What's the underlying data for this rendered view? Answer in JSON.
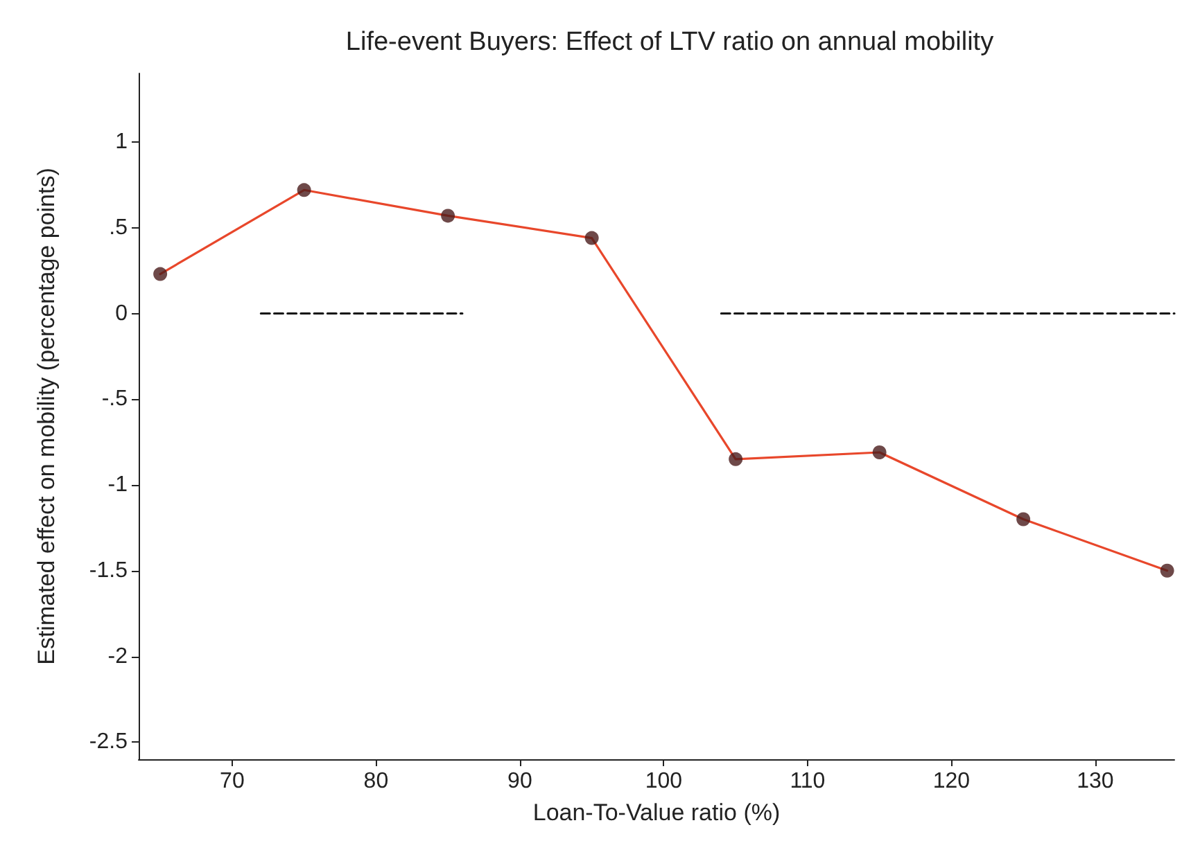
{
  "chart_data": {
    "type": "line",
    "title": "Life-event Buyers: Effect of LTV ratio on annual mobility",
    "xlabel": "Loan-To-Value ratio (%)",
    "ylabel": "Estimated effect on mobility (percentage points)",
    "x": [
      65,
      75,
      85,
      95,
      105,
      115,
      125,
      135
    ],
    "series": [
      {
        "color": "#e8472b",
        "marker": "none",
        "line_style": "solid",
        "values": [
          0.23,
          0.72,
          0.57,
          0.44,
          -0.85,
          -0.81,
          -1.2,
          -1.5
        ]
      },
      {
        "type": "scatter",
        "color": "#4a1c1c",
        "marker": "circle",
        "values": [
          0.23,
          0.72,
          0.57,
          0.44,
          -0.85,
          -0.81,
          -1.2,
          -1.5
        ]
      },
      {
        "color": "#111111",
        "marker": "none",
        "line_style": "dashed",
        "x": [
          72,
          86,
          null,
          104,
          135.5
        ],
        "values": [
          0,
          0,
          null,
          0,
          0
        ]
      }
    ],
    "xlim": [
      63.5,
      135.5
    ],
    "xticks": [
      70,
      80,
      90,
      100,
      110,
      120,
      130
    ],
    "ylim": [
      -2.6,
      1.4
    ],
    "yticks": [
      {
        "value": 1,
        "label": "1"
      },
      {
        "value": 0.5,
        "label": ".5"
      },
      {
        "value": 0,
        "label": "0"
      },
      {
        "value": -0.5,
        "label": "-.5"
      },
      {
        "value": -1,
        "label": "-1"
      },
      {
        "value": -1.5,
        "label": "-1.5"
      },
      {
        "value": -2,
        "label": "-2"
      },
      {
        "value": -2.5,
        "label": "-2.5"
      }
    ],
    "grid": false
  }
}
